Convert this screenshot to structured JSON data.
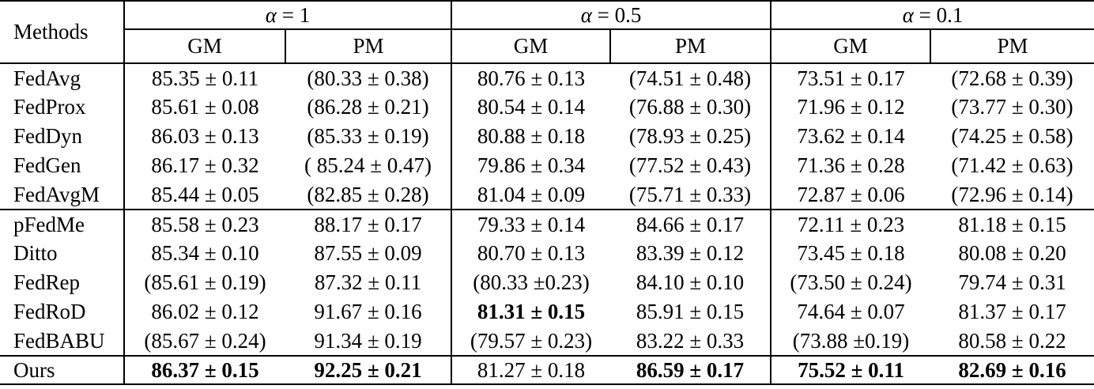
{
  "table": {
    "methods_header": "Methods",
    "groups": [
      {
        "symbol": "α",
        "rest": " = 1",
        "subheaders": [
          "GM",
          "PM"
        ]
      },
      {
        "symbol": "α",
        "rest": " = 0.5",
        "subheaders": [
          "GM",
          "PM"
        ]
      },
      {
        "symbol": "α",
        "rest": " = 0.1",
        "subheaders": [
          "GM",
          "PM"
        ]
      }
    ],
    "rows": [
      {
        "method": "FedAvg",
        "section_end": false,
        "cells": [
          {
            "text": "85.35 ± 0.11",
            "bold": false
          },
          {
            "text": "(80.33 ± 0.38)",
            "bold": false
          },
          {
            "text": "80.76 ± 0.13",
            "bold": false
          },
          {
            "text": "(74.51 ± 0.48)",
            "bold": false
          },
          {
            "text": "73.51 ± 0.17",
            "bold": false
          },
          {
            "text": "(72.68 ± 0.39)",
            "bold": false
          }
        ]
      },
      {
        "method": "FedProx",
        "section_end": false,
        "cells": [
          {
            "text": "85.61 ± 0.08",
            "bold": false
          },
          {
            "text": "(86.28 ± 0.21)",
            "bold": false
          },
          {
            "text": "80.54 ± 0.14",
            "bold": false
          },
          {
            "text": "(76.88 ± 0.30)",
            "bold": false
          },
          {
            "text": "71.96 ± 0.12",
            "bold": false
          },
          {
            "text": "(73.77 ± 0.30)",
            "bold": false
          }
        ]
      },
      {
        "method": "FedDyn",
        "section_end": false,
        "cells": [
          {
            "text": "86.03 ± 0.13",
            "bold": false
          },
          {
            "text": "(85.33 ± 0.19)",
            "bold": false
          },
          {
            "text": "80.88 ± 0.18",
            "bold": false
          },
          {
            "text": "(78.93 ± 0.25)",
            "bold": false
          },
          {
            "text": "73.62 ± 0.14",
            "bold": false
          },
          {
            "text": "(74.25 ± 0.58)",
            "bold": false
          }
        ]
      },
      {
        "method": "FedGen",
        "section_end": false,
        "cells": [
          {
            "text": "86.17 ± 0.32",
            "bold": false
          },
          {
            "text": "( 85.24 ± 0.47)",
            "bold": false
          },
          {
            "text": "79.86 ± 0.34",
            "bold": false
          },
          {
            "text": "(77.52 ± 0.43)",
            "bold": false
          },
          {
            "text": "71.36 ± 0.28",
            "bold": false
          },
          {
            "text": "(71.42 ± 0.63)",
            "bold": false
          }
        ]
      },
      {
        "method": "FedAvgM",
        "section_end": true,
        "cells": [
          {
            "text": "85.44 ± 0.05",
            "bold": false
          },
          {
            "text": "(82.85 ± 0.28)",
            "bold": false
          },
          {
            "text": "81.04 ± 0.09",
            "bold": false
          },
          {
            "text": "(75.71 ± 0.33)",
            "bold": false
          },
          {
            "text": "72.87 ± 0.06",
            "bold": false
          },
          {
            "text": "(72.96 ± 0.14)",
            "bold": false
          }
        ]
      },
      {
        "method": "pFedMe",
        "section_end": false,
        "cells": [
          {
            "text": "85.58 ± 0.23",
            "bold": false
          },
          {
            "text": "88.17 ± 0.17",
            "bold": false
          },
          {
            "text": "79.33 ± 0.14",
            "bold": false
          },
          {
            "text": "84.66 ± 0.17",
            "bold": false
          },
          {
            "text": "72.11 ± 0.23",
            "bold": false
          },
          {
            "text": "81.18 ± 0.15",
            "bold": false
          }
        ]
      },
      {
        "method": "Ditto",
        "section_end": false,
        "cells": [
          {
            "text": "85.34 ± 0.10",
            "bold": false
          },
          {
            "text": "87.55 ± 0.09",
            "bold": false
          },
          {
            "text": "80.70 ± 0.13",
            "bold": false
          },
          {
            "text": "83.39 ± 0.12",
            "bold": false
          },
          {
            "text": "73.45 ± 0.18",
            "bold": false
          },
          {
            "text": "80.08 ± 0.20",
            "bold": false
          }
        ]
      },
      {
        "method": "FedRep",
        "section_end": false,
        "cells": [
          {
            "text": "(85.61 ± 0.19)",
            "bold": false
          },
          {
            "text": "87.32 ± 0.11",
            "bold": false
          },
          {
            "text": "(80.33 ±0.23)",
            "bold": false
          },
          {
            "text": "84.10 ± 0.10",
            "bold": false
          },
          {
            "text": "(73.50 ± 0.24)",
            "bold": false
          },
          {
            "text": "79.74 ± 0.31",
            "bold": false
          }
        ]
      },
      {
        "method": "FedRoD",
        "section_end": false,
        "cells": [
          {
            "text": "86.02 ± 0.12",
            "bold": false
          },
          {
            "text": "91.67 ± 0.16",
            "bold": false
          },
          {
            "text": "81.31 ± 0.15",
            "bold": true
          },
          {
            "text": "85.91 ± 0.15",
            "bold": false
          },
          {
            "text": "74.64 ± 0.07",
            "bold": false
          },
          {
            "text": "81.37 ± 0.17",
            "bold": false
          }
        ]
      },
      {
        "method": "FedBABU",
        "section_end": true,
        "cells": [
          {
            "text": "(85.67 ± 0.24)",
            "bold": false
          },
          {
            "text": "91.34 ± 0.19",
            "bold": false
          },
          {
            "text": "(79.57 ± 0.23)",
            "bold": false
          },
          {
            "text": "83.22 ± 0.33",
            "bold": false
          },
          {
            "text": "(73.88 ±0.19)",
            "bold": false
          },
          {
            "text": "80.58 ± 0.22",
            "bold": false
          }
        ]
      },
      {
        "method": "Ours",
        "section_end": false,
        "cells": [
          {
            "text": "86.37 ± 0.15",
            "bold": true
          },
          {
            "text": "92.25 ± 0.21",
            "bold": true
          },
          {
            "text": "81.27 ± 0.18",
            "bold": false
          },
          {
            "text": "86.59 ± 0.17",
            "bold": true
          },
          {
            "text": "75.52 ± 0.11",
            "bold": true
          },
          {
            "text": "82.69 ± 0.16",
            "bold": true
          }
        ]
      }
    ]
  }
}
